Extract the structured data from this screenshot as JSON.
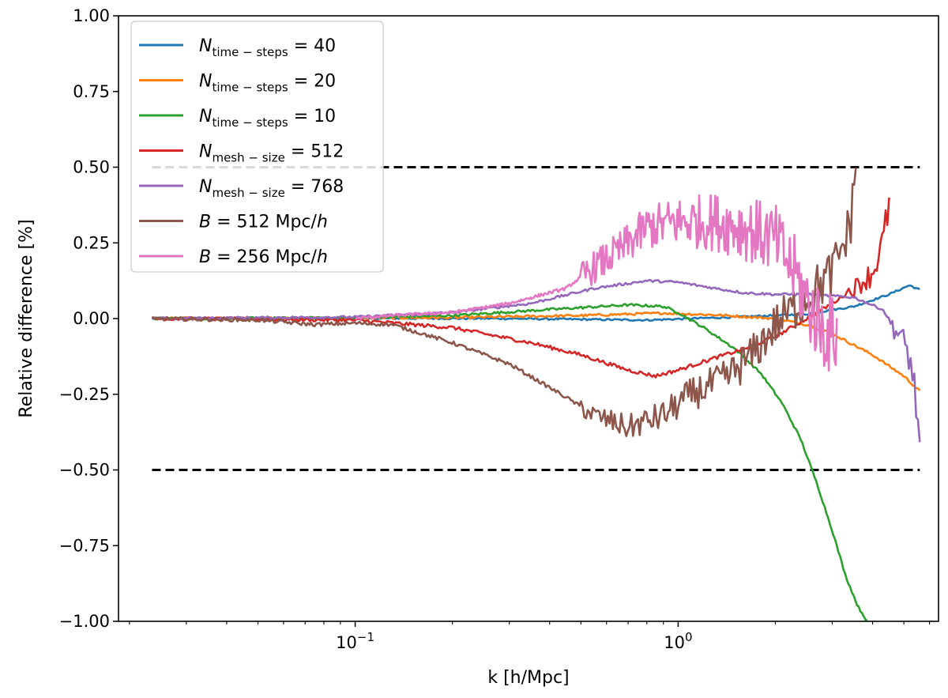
{
  "chart_data": {
    "type": "line",
    "title": "",
    "xlabel": "k [h/Mpc]",
    "ylabel": "Relative difference [%]",
    "xscale": "log",
    "xlim": [
      0.0185,
      6.4
    ],
    "ylim": [
      -1.0,
      1.0
    ],
    "yticks": [
      -1.0,
      -0.75,
      -0.5,
      -0.25,
      0.0,
      0.25,
      0.5,
      0.75,
      1.0
    ],
    "ytick_labels": [
      "−1.00",
      "−0.75",
      "−0.50",
      "−0.25",
      "0.00",
      "0.25",
      "0.50",
      "0.75",
      "1.00"
    ],
    "xticks_major": [
      0.1,
      1.0
    ],
    "xtick_labels": [
      {
        "base": "10",
        "exp": "−1"
      },
      {
        "base": "10",
        "exp": "0"
      }
    ],
    "grid": false,
    "legend_position": "top-left",
    "reference_lines": [
      {
        "y": 0.5,
        "x_range": [
          0.0235,
          5.6
        ],
        "style": "dashed",
        "color": "#000000"
      },
      {
        "y": -0.5,
        "x_range": [
          0.0235,
          5.6
        ],
        "style": "dashed",
        "color": "#000000"
      }
    ],
    "series": [
      {
        "name": "N_time-steps = 40",
        "color": "#1f77b4",
        "noise": 0.003,
        "points": [
          [
            0.0235,
            0
          ],
          [
            0.1,
            0.001
          ],
          [
            0.3,
            0.0
          ],
          [
            0.8,
            -0.005
          ],
          [
            1.5,
            0.005
          ],
          [
            2.5,
            0.015
          ],
          [
            3.5,
            0.04
          ],
          [
            4.5,
            0.08
          ],
          [
            5.2,
            0.11
          ],
          [
            5.6,
            0.095
          ]
        ]
      },
      {
        "name": "N_time-steps = 20",
        "color": "#ff7f0e",
        "noise": 0.004,
        "points": [
          [
            0.0235,
            0
          ],
          [
            0.2,
            0.003
          ],
          [
            0.5,
            0.01
          ],
          [
            0.9,
            0.018
          ],
          [
            1.3,
            0.012
          ],
          [
            2.0,
            0.0
          ],
          [
            2.5,
            -0.02
          ],
          [
            3.0,
            -0.05
          ],
          [
            4.0,
            -0.12
          ],
          [
            5.0,
            -0.19
          ],
          [
            5.6,
            -0.24
          ]
        ]
      },
      {
        "name": "N_time-steps = 10",
        "color": "#2ca02c",
        "noise": 0.004,
        "points": [
          [
            0.0235,
            0
          ],
          [
            0.1,
            0.002
          ],
          [
            0.2,
            0.01
          ],
          [
            0.4,
            0.03
          ],
          [
            0.7,
            0.045
          ],
          [
            0.9,
            0.04
          ],
          [
            1.0,
            0.02
          ],
          [
            1.2,
            -0.03
          ],
          [
            1.5,
            -0.1
          ],
          [
            1.8,
            -0.18
          ],
          [
            2.1,
            -0.28
          ],
          [
            2.4,
            -0.4
          ],
          [
            2.7,
            -0.55
          ],
          [
            3.0,
            -0.7
          ],
          [
            3.3,
            -0.85
          ],
          [
            3.6,
            -0.95
          ],
          [
            3.85,
            -1.0
          ]
        ]
      },
      {
        "name": "N_mesh-size = 512",
        "color": "#d62728",
        "noise": 0.006,
        "points": [
          [
            0.0235,
            0
          ],
          [
            0.1,
            -0.005
          ],
          [
            0.2,
            -0.03
          ],
          [
            0.35,
            -0.08
          ],
          [
            0.5,
            -0.12
          ],
          [
            0.7,
            -0.17
          ],
          [
            0.85,
            -0.19
          ],
          [
            1.0,
            -0.17
          ],
          [
            1.3,
            -0.13
          ],
          [
            1.6,
            -0.1
          ],
          [
            2.0,
            -0.06
          ],
          [
            2.5,
            0.0
          ],
          [
            3.0,
            0.05
          ],
          [
            3.5,
            0.1
          ],
          [
            4.0,
            0.15
          ],
          [
            4.3,
            0.25
          ],
          [
            4.5,
            0.38
          ]
        ],
        "noise_region": {
          "from": 3.3,
          "to": 4.5,
          "amp": 0.06
        }
      },
      {
        "name": "N_mesh-size = 768",
        "color": "#9467bd",
        "noise": 0.004,
        "points": [
          [
            0.0235,
            0
          ],
          [
            0.1,
            0.005
          ],
          [
            0.2,
            0.02
          ],
          [
            0.35,
            0.05
          ],
          [
            0.55,
            0.1
          ],
          [
            0.8,
            0.125
          ],
          [
            1.0,
            0.12
          ],
          [
            1.3,
            0.1
          ],
          [
            1.6,
            0.085
          ],
          [
            2.0,
            0.08
          ],
          [
            2.5,
            0.08
          ],
          [
            3.5,
            0.07
          ],
          [
            4.3,
            0.03
          ],
          [
            4.8,
            -0.05
          ],
          [
            5.2,
            -0.12
          ],
          [
            5.5,
            -0.3
          ],
          [
            5.6,
            -0.45
          ]
        ],
        "noise_region": {
          "from": 4.5,
          "to": 5.6,
          "amp": 0.08
        }
      },
      {
        "name": "B = 512 Mpc/h",
        "color": "#8c564b",
        "noise": 0.006,
        "points": [
          [
            0.0235,
            0
          ],
          [
            0.05,
            -0.005
          ],
          [
            0.075,
            -0.02
          ],
          [
            0.1,
            -0.015
          ],
          [
            0.13,
            -0.02
          ],
          [
            0.2,
            -0.08
          ],
          [
            0.3,
            -0.15
          ],
          [
            0.45,
            -0.26
          ],
          [
            0.55,
            -0.32
          ],
          [
            0.7,
            -0.36
          ],
          [
            0.9,
            -0.32
          ],
          [
            1.1,
            -0.25
          ],
          [
            1.4,
            -0.2
          ],
          [
            1.7,
            -0.12
          ],
          [
            2.0,
            -0.02
          ],
          [
            2.5,
            0.07
          ],
          [
            3.0,
            0.15
          ],
          [
            3.4,
            0.3
          ],
          [
            3.55,
            0.5
          ]
        ],
        "noise_region": {
          "from": 0.5,
          "to": 3.55,
          "amp": 0.09
        }
      },
      {
        "name": "B = 256 Mpc/h",
        "color": "#e377c2",
        "noise": 0.005,
        "points": [
          [
            0.1,
            0.0
          ],
          [
            0.13,
            0.01
          ],
          [
            0.2,
            0.02
          ],
          [
            0.3,
            0.05
          ],
          [
            0.45,
            0.1
          ],
          [
            0.55,
            0.17
          ],
          [
            0.65,
            0.22
          ],
          [
            0.8,
            0.3
          ],
          [
            1.0,
            0.32
          ],
          [
            1.3,
            0.32
          ],
          [
            1.6,
            0.3
          ],
          [
            2.0,
            0.26
          ],
          [
            2.3,
            0.15
          ],
          [
            2.6,
            0.02
          ],
          [
            2.9,
            -0.05
          ],
          [
            3.1,
            -0.05
          ]
        ],
        "noise_region": {
          "from": 0.5,
          "to": 3.1,
          "amp": 0.14
        }
      }
    ]
  },
  "legend": [
    {
      "sym": "N",
      "sub": "time − steps",
      "rest": " = 40"
    },
    {
      "sym": "N",
      "sub": "time − steps",
      "rest": " = 20"
    },
    {
      "sym": "N",
      "sub": "time − steps",
      "rest": " = 10"
    },
    {
      "sym": "N",
      "sub": "mesh − size",
      "rest": " = 512"
    },
    {
      "sym": "N",
      "sub": "mesh − size",
      "rest": " = 768"
    },
    {
      "sym": "B",
      "sub": "",
      "rest": " = 512 Mpc/",
      "tail": "h"
    },
    {
      "sym": "B",
      "sub": "",
      "rest": " = 256 Mpc/",
      "tail": "h"
    }
  ]
}
